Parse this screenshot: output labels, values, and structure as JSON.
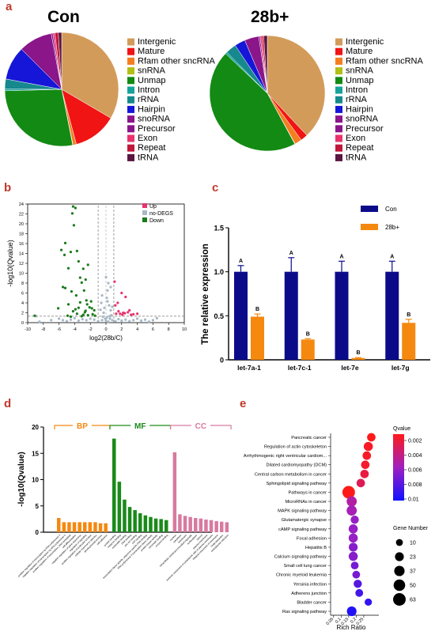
{
  "panel_letters": {
    "a": "a",
    "b": "b",
    "c": "c",
    "d": "d",
    "e": "e"
  },
  "colors": {
    "panel_letter": "#c0392b",
    "up": "#e8336d",
    "nodegs": "#a7b8c6",
    "down": "#1a7a1a",
    "con": "#0b0b8a",
    "b28": "#f5880f",
    "bp": "#f5880f",
    "mf": "#1a8a1a",
    "cc": "#d77aa0"
  },
  "chart_data": [
    {
      "type": "pie",
      "title": "Con",
      "legend": [
        "Intergenic",
        "Mature",
        "Rfam other sncRNA",
        "snRNA",
        "Unmap",
        "Intron",
        "rRNA",
        "Hairpin",
        "snoRNA",
        "Precursor",
        "Exon",
        "Repeat",
        "tRNA"
      ],
      "colors": [
        "#d39b5a",
        "#f01414",
        "#f57e20",
        "#b0c014",
        "#138a13",
        "#16a39a",
        "#16888e",
        "#1616d8",
        "#8a168a",
        "#8a168a",
        "#e8336d",
        "#c0163a",
        "#5a1640"
      ],
      "values": [
        35.0,
        13.0,
        1.0,
        0.1,
        29.0,
        0.5,
        3.0,
        10.0,
        10.0,
        0.5,
        0.6,
        1.0,
        1.0
      ]
    },
    {
      "type": "pie",
      "title": "28b+",
      "legend": [
        "Intergenic",
        "Mature",
        "Rfam other sncRNA",
        "snRNA",
        "Unmap",
        "Intron",
        "rRNA",
        "Hairpin",
        "snoRNA",
        "Precursor",
        "Exon",
        "Repeat",
        "tRNA"
      ],
      "colors": [
        "#d39b5a",
        "#f01414",
        "#f57e20",
        "#b0c014",
        "#138a13",
        "#16a39a",
        "#16888e",
        "#1616d8",
        "#8a168a",
        "#8a168a",
        "#e8336d",
        "#c0163a",
        "#5a1640"
      ],
      "values": [
        38.0,
        2.0,
        2.0,
        0.1,
        45.0,
        0.5,
        3.0,
        3.0,
        4.0,
        0.4,
        0.5,
        0.5,
        1.0
      ]
    },
    {
      "type": "scatter",
      "xlabel": "log2(28b/C)",
      "ylabel": "-log10(Qvalue)",
      "xlim": [
        -10,
        10
      ],
      "ylim": [
        0,
        24
      ],
      "xticks": [
        "-10",
        "-8",
        "-6",
        "-4",
        "-2",
        "0",
        "2",
        "4",
        "6",
        "8",
        "10"
      ],
      "yticks": [
        "0",
        "2",
        "4",
        "6",
        "8",
        "10",
        "12",
        "14",
        "16",
        "18",
        "20",
        "22",
        "24"
      ],
      "legend": [
        "Up",
        "no-DEGS",
        "Down"
      ],
      "series": [
        {
          "name": "Up",
          "points": [
            [
              1.5,
              4
            ],
            [
              2,
              6
            ],
            [
              2.5,
              5.2
            ],
            [
              1.2,
              3.5
            ],
            [
              3,
              2.5
            ],
            [
              2.2,
              2
            ],
            [
              1.8,
              1.8
            ],
            [
              3.5,
              1.7
            ],
            [
              2.8,
              2.1
            ],
            [
              1.1,
              8.3
            ],
            [
              1.6,
              2.3
            ],
            [
              2.4,
              1.9
            ],
            [
              1.3,
              1.8
            ],
            [
              3.2,
              1.6
            ],
            [
              4,
              1.8
            ],
            [
              2.1,
              1.6
            ]
          ]
        },
        {
          "name": "no-DEGS",
          "points": [
            [
              -8.5,
              0.2
            ],
            [
              -7,
              0.5
            ],
            [
              -6,
              0.8
            ],
            [
              -5.5,
              0.5
            ],
            [
              -5,
              0.3
            ],
            [
              -4.5,
              0.6
            ],
            [
              -4,
              0.9
            ],
            [
              -3.5,
              0.4
            ],
            [
              -3,
              0.7
            ],
            [
              -2.5,
              0.5
            ],
            [
              -2,
              0.8
            ],
            [
              -1.5,
              0.6
            ],
            [
              -1,
              0.3
            ],
            [
              -0.5,
              0.5
            ],
            [
              0,
              0.4
            ],
            [
              0.3,
              0.2
            ],
            [
              0.5,
              0.8
            ],
            [
              0.8,
              0.5
            ],
            [
              1.2,
              0.3
            ],
            [
              1.6,
              0.7
            ],
            [
              2,
              0.4
            ],
            [
              2.5,
              0.6
            ],
            [
              3,
              0.3
            ],
            [
              3.5,
              0.5
            ],
            [
              4,
              0.8
            ],
            [
              4.5,
              0.4
            ],
            [
              5,
              0.6
            ],
            [
              5.5,
              0.2
            ],
            [
              6,
              0.5
            ],
            [
              6.5,
              0.9
            ],
            [
              -0.2,
              3
            ],
            [
              0.1,
              5
            ],
            [
              0.3,
              8
            ],
            [
              -0.4,
              1.2
            ],
            [
              0.6,
              2.5
            ],
            [
              -0.6,
              4
            ],
            [
              0.2,
              6.5
            ],
            [
              0.4,
              3.5
            ],
            [
              -0.3,
              2
            ],
            [
              0.7,
              1.5
            ],
            [
              0.1,
              1
            ],
            [
              -0.1,
              0.8
            ],
            [
              0.5,
              1.3
            ],
            [
              -0.7,
              2.6
            ],
            [
              0.8,
              3.2
            ],
            [
              0.0,
              9.2
            ],
            [
              0.2,
              4.3
            ],
            [
              -0.5,
              5.5
            ],
            [
              0.6,
              7.2
            ],
            [
              -8.9,
              1.3
            ]
          ]
        },
        {
          "name": "Down",
          "points": [
            [
              -4.2,
              23.5
            ],
            [
              -3.9,
              23.2
            ],
            [
              -4.3,
              22.1
            ],
            [
              -4.1,
              19.7
            ],
            [
              -5.2,
              16.1
            ],
            [
              -5.7,
              14.7
            ],
            [
              -4.5,
              14.3
            ],
            [
              -3.7,
              14.5
            ],
            [
              -5.3,
              13.7
            ],
            [
              -3.5,
              12.4
            ],
            [
              -4.8,
              11
            ],
            [
              -2.3,
              11.7
            ],
            [
              -2.9,
              10.9
            ],
            [
              -3.3,
              9.1
            ],
            [
              -2.6,
              8.7
            ],
            [
              -3.1,
              8.1
            ],
            [
              -5.5,
              7.2
            ],
            [
              -5.2,
              7
            ],
            [
              -4.4,
              6.3
            ],
            [
              -2.8,
              6.5
            ],
            [
              -3.8,
              5.5
            ],
            [
              -2.5,
              4.5
            ],
            [
              -1.9,
              4.3
            ],
            [
              -3.3,
              4.1
            ],
            [
              -4.8,
              3.7
            ],
            [
              -2.4,
              3.7
            ],
            [
              -6.1,
              2.9
            ],
            [
              -3.5,
              3
            ],
            [
              -2.1,
              3.1
            ],
            [
              -4.2,
              2.3
            ],
            [
              -2.7,
              2.1
            ],
            [
              -1.5,
              2.5
            ],
            [
              -3.7,
              1.8
            ],
            [
              -2.9,
              1.6
            ],
            [
              -1.7,
              1.7
            ],
            [
              -4.9,
              1.4
            ],
            [
              -3.1,
              1.3
            ],
            [
              -2.3,
              1.5
            ],
            [
              -1.4,
              1.4
            ],
            [
              -9.1,
              1.4
            ],
            [
              -4.5,
              1.2
            ],
            [
              -3.9,
              2.7
            ],
            [
              -2.6,
              2.4
            ],
            [
              -1.8,
              2.9
            ]
          ]
        }
      ],
      "threshold_y": 1.3,
      "threshold_x": [
        -1,
        1
      ]
    },
    {
      "type": "bar",
      "ylabel": "The relative expression",
      "categories": [
        "let-7a-1",
        "let-7c-1",
        "let-7e",
        "let-7g"
      ],
      "ylim": [
        0,
        1.5
      ],
      "yticks": [
        "0",
        "0.5",
        "1.0",
        "1.5"
      ],
      "series": [
        {
          "name": "Con",
          "values": [
            1.0,
            1.0,
            1.0,
            1.0
          ],
          "errors": [
            0.07,
            0.16,
            0.12,
            0.12
          ],
          "letters": [
            "A",
            "A",
            "A",
            "A"
          ]
        },
        {
          "name": "28b+",
          "values": [
            0.49,
            0.23,
            0.02,
            0.42
          ],
          "errors": [
            0.03,
            0.01,
            0.005,
            0.04
          ],
          "letters": [
            "B",
            "B",
            "B",
            "B"
          ]
        }
      ]
    },
    {
      "type": "bar",
      "ylabel": "-log10(Qvalue)",
      "ylim": [
        0,
        20
      ],
      "yticks": [
        "0",
        "5",
        "10",
        "15",
        "20"
      ],
      "groups": [
        {
          "name": "BP",
          "values": [
            2.7,
            1.9,
            1.9,
            1.9,
            1.9,
            1.9,
            1.9,
            1.9,
            1.7,
            1.7
          ],
          "labels": [
            "positive regulation of transcription by RNA polymerase II",
            "negative regulation of transcription by RNA polymerase II",
            "positive regulation of transcription, DNA-templated",
            "cell differentiation",
            "negative regulation of gene expression",
            "regulation of signaling",
            "positive regulation of molecular function",
            "cellular response to stimulus",
            "developmental process",
            "cell adhesion"
          ]
        },
        {
          "name": "MF",
          "values": [
            17.8,
            9.6,
            6.2,
            4.8,
            4.2,
            3.6,
            3.2,
            2.9,
            2.6,
            2.5,
            2.3
          ],
          "labels": [
            "protein binding",
            "metal ion binding",
            "nucleotide binding",
            "DNA binding",
            "zinc ion binding",
            "ATP binding",
            "transcription factor activity, sequence-specific DNA binding",
            "RNA polymerase II transcription factor activity",
            "protein kinase activity",
            "chromatin binding",
            "enzyme binding"
          ]
        },
        {
          "name": "CC",
          "values": [
            15.2,
            3.4,
            3.1,
            2.9,
            2.7,
            2.6,
            2.4,
            2.3,
            2.1,
            2.0,
            1.9
          ],
          "labels": [
            "nucleus",
            "cytoplasm",
            "membrane",
            "intracellular membrane-bounded organelle",
            "nucleoplasm",
            "cytosol",
            "plasma membrane",
            "extrinsic component of cytoplasmic side of plasma membrane",
            "integral component of membrane",
            "Golgi apparatus",
            "endoplasmic reticulum"
          ]
        }
      ]
    },
    {
      "type": "scatter",
      "xlabel": "Rich Ratio",
      "xlim": [
        0.03,
        0.35
      ],
      "xticks": [
        "0.05",
        "0.1",
        "0.15",
        "0.2",
        "0.25"
      ],
      "color_legend_title": "Qvalue",
      "color_ticks": [
        "0.002",
        "0.004",
        "0.006",
        "0.008",
        "0.01"
      ],
      "size_legend_title": "Gene Number",
      "size_ticks": [
        "10",
        "23",
        "37",
        "50",
        "63"
      ],
      "categories": [
        "Pancreatic cancer",
        "Regulation of actin cytoskeleton",
        "Arrhythmogenic right ventricular cardiom...",
        "Dilated cardiomyopathy (DCM)",
        "Central carbon metabolism in cancer",
        "Sphingolipid signaling pathway",
        "Pathways in cancer",
        "MicroRNAs in cancer",
        "MAPK signaling pathway",
        "Glutamatergic synapse",
        "cAMP signaling pathway",
        "Focal adhesion",
        "Hepatitis B",
        "Calcium signaling pathway",
        "Small cell lung cancer",
        "Chronic myeloid leukemia",
        "Yersinia infection",
        "Adherens junction",
        "Bladder cancer",
        "Ras signaling pathway"
      ],
      "rich_ratio": [
        0.3,
        0.28,
        0.27,
        0.26,
        0.255,
        0.23,
        0.15,
        0.17,
        0.17,
        0.19,
        0.18,
        0.18,
        0.18,
        0.18,
        0.19,
        0.2,
        0.21,
        0.22,
        0.28,
        0.17
      ],
      "qvalue": [
        0.0015,
        0.0018,
        0.0018,
        0.002,
        0.0025,
        0.003,
        0.0015,
        0.005,
        0.0055,
        0.006,
        0.006,
        0.006,
        0.0065,
        0.0065,
        0.007,
        0.007,
        0.008,
        0.0085,
        0.009,
        0.0095
      ],
      "gene_number": [
        20,
        25,
        20,
        20,
        20,
        20,
        63,
        35,
        35,
        18,
        25,
        25,
        23,
        25,
        15,
        15,
        18,
        15,
        12,
        30
      ]
    }
  ]
}
